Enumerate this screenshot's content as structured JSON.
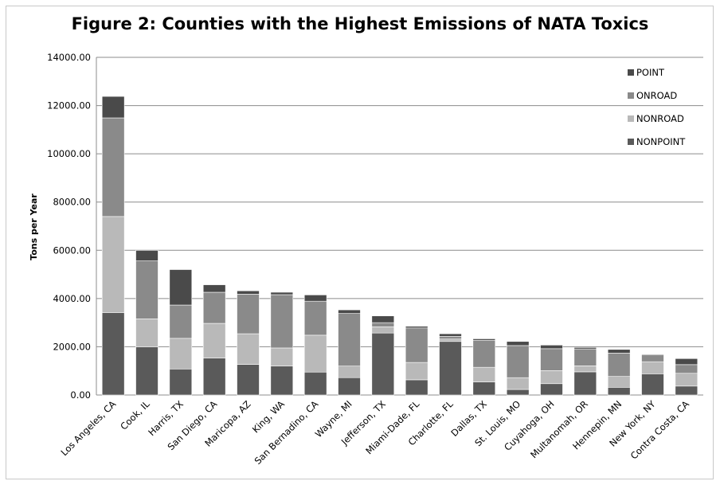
{
  "chart_data": {
    "type": "bar",
    "stacked": true,
    "title": "Figure 2: Counties with the Highest Emissions of NATA Toxics",
    "xlabel": "",
    "ylabel": "Tons per Year",
    "ylim": [
      0,
      14000
    ],
    "yticks": [
      "0.00",
      "2000.00",
      "4000.00",
      "6000.00",
      "8000.00",
      "10000.00",
      "12000.00",
      "14000.00"
    ],
    "grid": true,
    "legend_position": "top-right",
    "categories": [
      "Los Angeles, CA",
      "Cook, IL",
      "Harris, TX",
      "San Diego, CA",
      "Maricopa, AZ",
      "King, WA",
      "San Bernadino, CA",
      "Wayne, MI",
      "Jefferson, TX",
      "Miami-Dade, FL",
      "Charlotte, FL",
      "Dallas, TX",
      "St. Louis, MO",
      "Cuyahoga, OH",
      "Multanomah, OR",
      "Hennepin, MN",
      "New York, NY",
      "Contra Costa, CA"
    ],
    "series": [
      {
        "name": "NONPOINT",
        "color": "#5a5a5a",
        "values": [
          3420,
          2000,
          1080,
          1530,
          1270,
          1200,
          950,
          720,
          2570,
          630,
          2220,
          540,
          230,
          470,
          960,
          320,
          880,
          370
        ]
      },
      {
        "name": "NONROAD",
        "color": "#b9b9b9",
        "values": [
          3980,
          1160,
          1270,
          1440,
          1270,
          750,
          1530,
          480,
          260,
          720,
          100,
          610,
          490,
          540,
          250,
          450,
          500,
          530
        ]
      },
      {
        "name": "ONROAD",
        "color": "#8a8a8a",
        "values": [
          4090,
          2400,
          1380,
          1290,
          1640,
          2210,
          1410,
          2180,
          170,
          1430,
          110,
          1120,
          1330,
          910,
          700,
          970,
          280,
          360
        ]
      },
      {
        "name": "POINT",
        "color": "#4a4a4a",
        "values": [
          890,
          440,
          1470,
          310,
          140,
          100,
          260,
          150,
          280,
          70,
          110,
          60,
          170,
          150,
          60,
          150,
          30,
          250
        ]
      }
    ],
    "legend_order": [
      "POINT",
      "ONROAD",
      "NONROAD",
      "NONPOINT"
    ]
  }
}
